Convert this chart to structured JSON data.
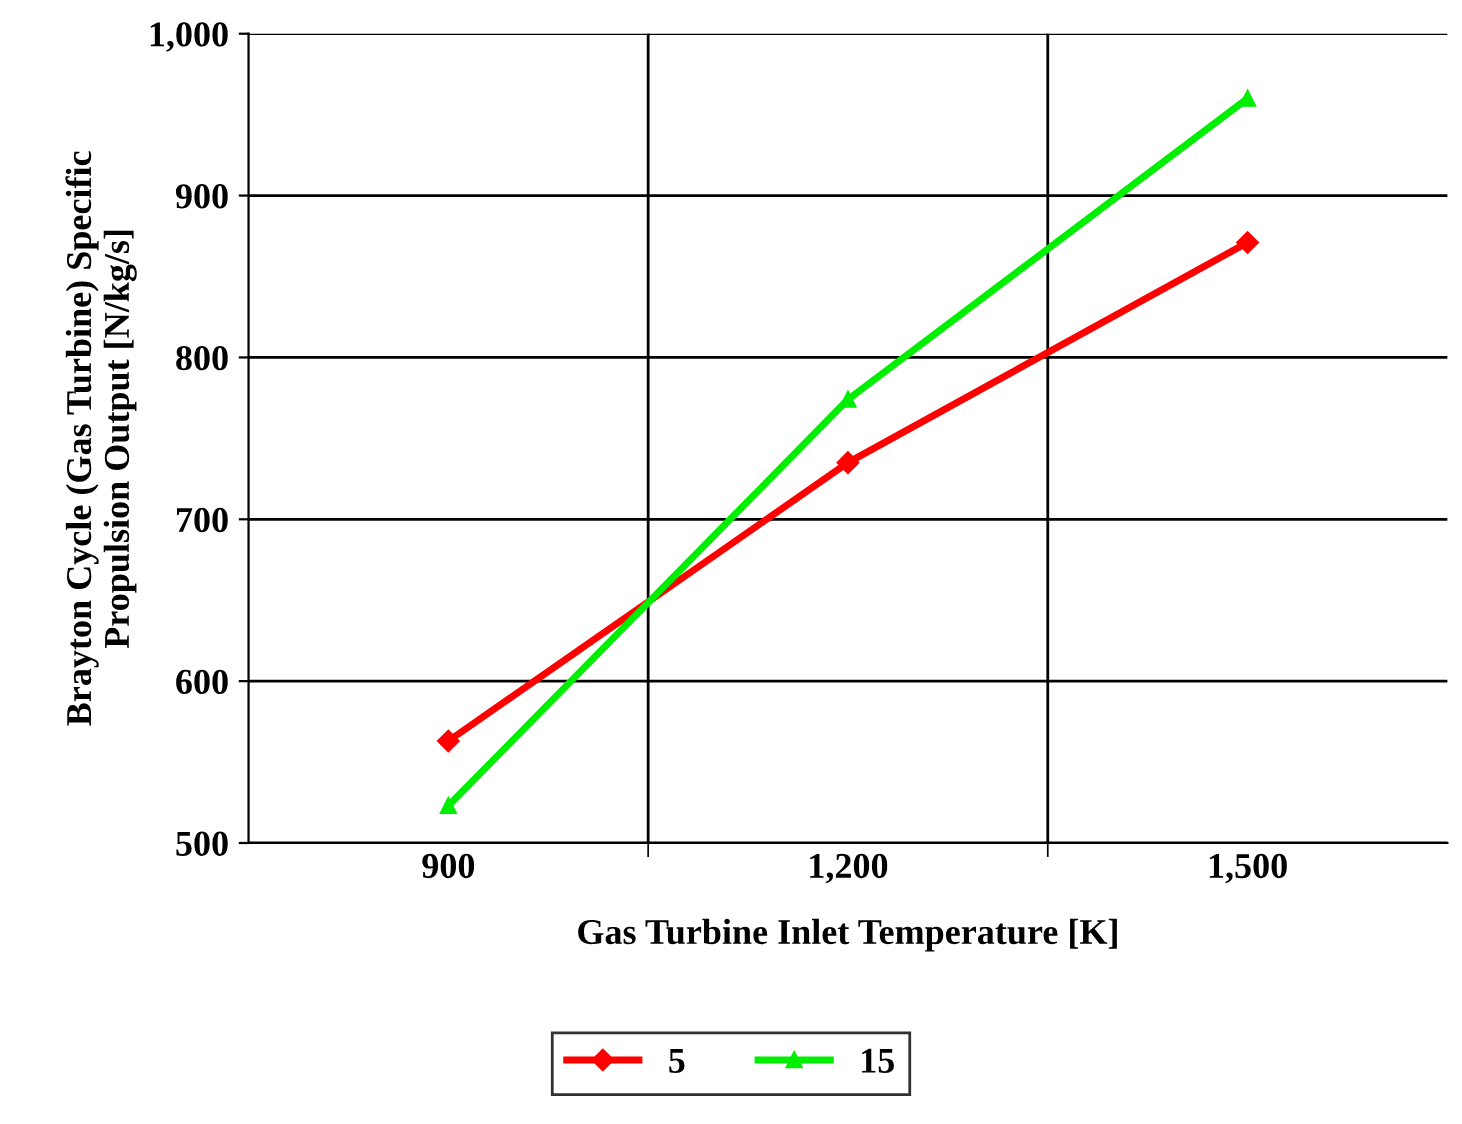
{
  "chart_data": {
    "type": "line",
    "xlabel": "Gas Turbine Inlet Temperature [K]",
    "ylabel": "Brayton Cycle (Gas Turbine) Specific\nPropulsion Output [N/kg/s]",
    "categories": [
      "900",
      "1,200",
      "1,500"
    ],
    "series": [
      {
        "name": "5",
        "color": "#ff0000",
        "marker": "diamond",
        "values": [
          563,
          735,
          871
        ]
      },
      {
        "name": "15",
        "color": "#00ee00",
        "marker": "triangle",
        "values": [
          523,
          774,
          960
        ]
      }
    ],
    "ylim": [
      500,
      1000
    ],
    "yticks": [
      500,
      600,
      700,
      800,
      900,
      {
        "value": 1000,
        "label": "1,000"
      }
    ],
    "grid": true,
    "legend": "bottom",
    "line_style": "solid"
  }
}
